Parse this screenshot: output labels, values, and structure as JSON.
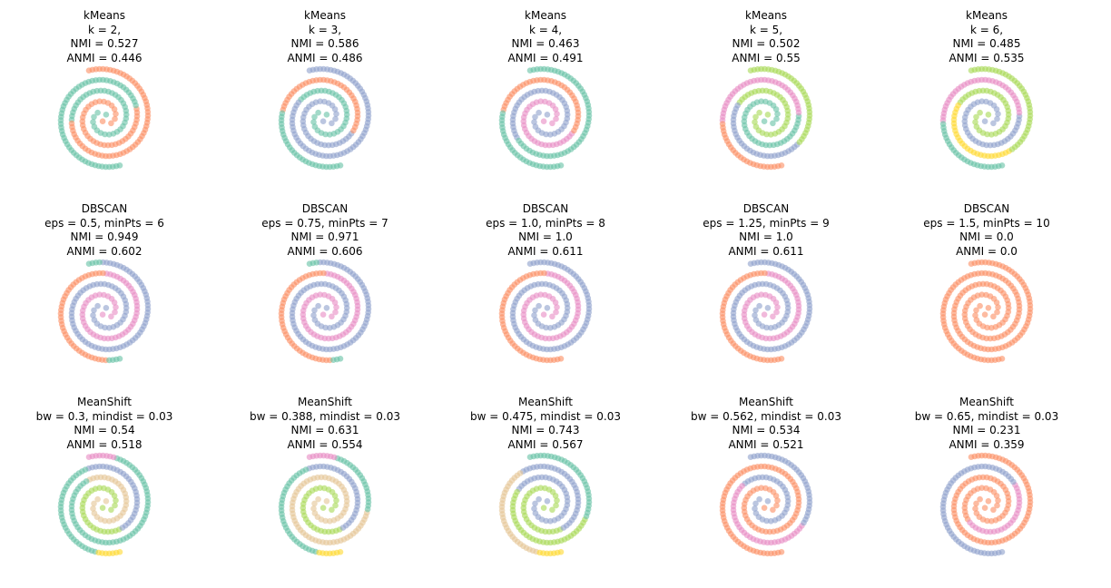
{
  "palette": {
    "green": "#66c2a5",
    "orange": "#fc8d62",
    "blue": "#8da0cb",
    "pink": "#e78ac3",
    "lime": "#a6d854",
    "yellow": "#ffd92f",
    "tan": "#e5c494"
  },
  "chart_data": [
    {
      "type": "scatter",
      "title": [
        "kMeans",
        "k = 2,",
        "NMI = 0.527",
        "ANMI = 0.446"
      ],
      "segments": [
        {
          "arm": 0,
          "from": 0,
          "to": 0.4,
          "color": "green"
        },
        {
          "arm": 0,
          "from": 0.4,
          "to": 1,
          "color": "orange"
        },
        {
          "arm": 1,
          "from": 0,
          "to": 0.42,
          "color": "orange"
        },
        {
          "arm": 1,
          "from": 0.42,
          "to": 1,
          "color": "green"
        }
      ]
    },
    {
      "type": "scatter",
      "title": [
        "kMeans",
        "k = 3,",
        "NMI = 0.586",
        "ANMI = 0.486"
      ],
      "segments": [
        {
          "arm": 0,
          "from": 0,
          "to": 0.33,
          "color": "green"
        },
        {
          "arm": 0,
          "from": 0.33,
          "to": 1,
          "color": "blue"
        },
        {
          "arm": 1,
          "from": 0,
          "to": 0.35,
          "color": "blue"
        },
        {
          "arm": 1,
          "from": 0.35,
          "to": 0.72,
          "color": "orange"
        },
        {
          "arm": 1,
          "from": 0.72,
          "to": 1,
          "color": "green"
        }
      ]
    },
    {
      "type": "scatter",
      "title": [
        "kMeans",
        "k = 4,",
        "NMI = 0.463",
        "ANMI = 0.491"
      ],
      "segments": [
        {
          "arm": 0,
          "from": 0,
          "to": 0.45,
          "color": "blue"
        },
        {
          "arm": 0,
          "from": 0.45,
          "to": 1,
          "color": "green"
        },
        {
          "arm": 1,
          "from": 0,
          "to": 0.35,
          "color": "pink"
        },
        {
          "arm": 1,
          "from": 0.35,
          "to": 0.72,
          "color": "orange"
        },
        {
          "arm": 1,
          "from": 0.72,
          "to": 1,
          "color": "green"
        }
      ]
    },
    {
      "type": "scatter",
      "title": [
        "kMeans",
        "k = 5,",
        "NMI = 0.502",
        "ANMI = 0.55"
      ],
      "segments": [
        {
          "arm": 0,
          "from": 0,
          "to": 0.35,
          "color": "lime"
        },
        {
          "arm": 0,
          "from": 0.35,
          "to": 0.65,
          "color": "blue"
        },
        {
          "arm": 0,
          "from": 0.65,
          "to": 1,
          "color": "lime"
        },
        {
          "arm": 1,
          "from": 0,
          "to": 0.4,
          "color": "green"
        },
        {
          "arm": 1,
          "from": 0.4,
          "to": 0.75,
          "color": "pink"
        },
        {
          "arm": 1,
          "from": 0.75,
          "to": 1,
          "color": "orange"
        }
      ]
    },
    {
      "type": "scatter",
      "title": [
        "kMeans",
        "k = 6,",
        "NMI = 0.485",
        "ANMI = 0.535"
      ],
      "segments": [
        {
          "arm": 0,
          "from": 0,
          "to": 0.35,
          "color": "lime"
        },
        {
          "arm": 0,
          "from": 0.35,
          "to": 0.62,
          "color": "yellow"
        },
        {
          "arm": 0,
          "from": 0.62,
          "to": 1,
          "color": "lime"
        },
        {
          "arm": 1,
          "from": 0,
          "to": 0.4,
          "color": "blue"
        },
        {
          "arm": 1,
          "from": 0.4,
          "to": 0.75,
          "color": "pink"
        },
        {
          "arm": 1,
          "from": 0.75,
          "to": 1,
          "color": "green"
        }
      ]
    },
    {
      "type": "scatter",
      "title": [
        "DBSCAN",
        "eps = 0.5, minPts = 6",
        "NMI = 0.949",
        "ANMI = 0.602"
      ],
      "segments": [
        {
          "arm": 0,
          "from": 0,
          "to": 0.96,
          "color": "blue"
        },
        {
          "arm": 0,
          "from": 0.96,
          "to": 1,
          "color": "green"
        },
        {
          "arm": 1,
          "from": 0,
          "to": 0.55,
          "color": "pink"
        },
        {
          "arm": 1,
          "from": 0.55,
          "to": 0.96,
          "color": "orange"
        },
        {
          "arm": 1,
          "from": 0.96,
          "to": 1,
          "color": "green"
        }
      ]
    },
    {
      "type": "scatter",
      "title": [
        "DBSCAN",
        "eps = 0.75, minPts = 7",
        "NMI = 0.971",
        "ANMI = 0.606"
      ],
      "segments": [
        {
          "arm": 0,
          "from": 0,
          "to": 0.97,
          "color": "blue"
        },
        {
          "arm": 0,
          "from": 0.97,
          "to": 1,
          "color": "green"
        },
        {
          "arm": 1,
          "from": 0,
          "to": 0.55,
          "color": "pink"
        },
        {
          "arm": 1,
          "from": 0.55,
          "to": 0.97,
          "color": "orange"
        },
        {
          "arm": 1,
          "from": 0.97,
          "to": 1,
          "color": "green"
        }
      ]
    },
    {
      "type": "scatter",
      "title": [
        "DBSCAN",
        "eps = 1.0, minPts = 8",
        "NMI = 1.0",
        "ANMI = 0.611"
      ],
      "segments": [
        {
          "arm": 0,
          "from": 0,
          "to": 1,
          "color": "blue"
        },
        {
          "arm": 1,
          "from": 0,
          "to": 0.55,
          "color": "pink"
        },
        {
          "arm": 1,
          "from": 0.55,
          "to": 1,
          "color": "orange"
        }
      ]
    },
    {
      "type": "scatter",
      "title": [
        "DBSCAN",
        "eps = 1.25, minPts = 9",
        "NMI = 1.0",
        "ANMI = 0.611"
      ],
      "segments": [
        {
          "arm": 0,
          "from": 0,
          "to": 1,
          "color": "blue"
        },
        {
          "arm": 1,
          "from": 0,
          "to": 0.55,
          "color": "pink"
        },
        {
          "arm": 1,
          "from": 0.55,
          "to": 1,
          "color": "orange"
        }
      ]
    },
    {
      "type": "scatter",
      "title": [
        "DBSCAN",
        "eps = 1.5, minPts = 10",
        "NMI = 0.0",
        "ANMI = 0.0"
      ],
      "segments": [
        {
          "arm": 0,
          "from": 0,
          "to": 1,
          "color": "orange"
        },
        {
          "arm": 1,
          "from": 0,
          "to": 1,
          "color": "orange"
        }
      ]
    },
    {
      "type": "scatter",
      "title": [
        "MeanShift",
        "bw = 0.3, mindist = 0.03",
        "NMI = 0.54",
        "ANMI = 0.518"
      ],
      "segments": [
        {
          "arm": 0,
          "from": 0,
          "to": 0.3,
          "color": "tan"
        },
        {
          "arm": 0,
          "from": 0.3,
          "to": 0.92,
          "color": "green"
        },
        {
          "arm": 0,
          "from": 0.92,
          "to": 1,
          "color": "pink"
        },
        {
          "arm": 1,
          "from": 0,
          "to": 0.3,
          "color": "lime"
        },
        {
          "arm": 1,
          "from": 0.3,
          "to": 0.6,
          "color": "blue"
        },
        {
          "arm": 1,
          "from": 0.6,
          "to": 0.93,
          "color": "green"
        },
        {
          "arm": 1,
          "from": 0.93,
          "to": 1,
          "color": "yellow"
        }
      ]
    },
    {
      "type": "scatter",
      "title": [
        "MeanShift",
        "bw = 0.388, mindist = 0.03",
        "NMI = 0.631",
        "ANMI = 0.554"
      ],
      "segments": [
        {
          "arm": 0,
          "from": 0,
          "to": 0.3,
          "color": "tan"
        },
        {
          "arm": 0,
          "from": 0.3,
          "to": 0.72,
          "color": "tan"
        },
        {
          "arm": 0,
          "from": 0.72,
          "to": 0.92,
          "color": "green"
        },
        {
          "arm": 0,
          "from": 0.92,
          "to": 1,
          "color": "pink"
        },
        {
          "arm": 1,
          "from": 0,
          "to": 0.3,
          "color": "lime"
        },
        {
          "arm": 1,
          "from": 0.3,
          "to": 0.6,
          "color": "blue"
        },
        {
          "arm": 1,
          "from": 0.6,
          "to": 0.93,
          "color": "green"
        },
        {
          "arm": 1,
          "from": 0.93,
          "to": 1,
          "color": "yellow"
        }
      ]
    },
    {
      "type": "scatter",
      "title": [
        "MeanShift",
        "bw = 0.475, mindist = 0.03",
        "NMI = 0.743",
        "ANMI = 0.567"
      ],
      "segments": [
        {
          "arm": 0,
          "from": 0,
          "to": 0.35,
          "color": "blue"
        },
        {
          "arm": 0,
          "from": 0.35,
          "to": 0.7,
          "color": "lime"
        },
        {
          "arm": 0,
          "from": 0.7,
          "to": 1,
          "color": "green"
        },
        {
          "arm": 1,
          "from": 0,
          "to": 0.3,
          "color": "lime"
        },
        {
          "arm": 1,
          "from": 0.3,
          "to": 0.62,
          "color": "blue"
        },
        {
          "arm": 1,
          "from": 0.62,
          "to": 0.93,
          "color": "tan"
        },
        {
          "arm": 1,
          "from": 0.93,
          "to": 1,
          "color": "yellow"
        }
      ]
    },
    {
      "type": "scatter",
      "title": [
        "MeanShift",
        "bw = 0.562, mindist = 0.03",
        "NMI = 0.534",
        "ANMI = 0.521"
      ],
      "segments": [
        {
          "arm": 0,
          "from": 0,
          "to": 0.32,
          "color": "blue"
        },
        {
          "arm": 0,
          "from": 0.32,
          "to": 0.68,
          "color": "pink"
        },
        {
          "arm": 0,
          "from": 0.68,
          "to": 1,
          "color": "blue"
        },
        {
          "arm": 1,
          "from": 0,
          "to": 0.6,
          "color": "orange"
        },
        {
          "arm": 1,
          "from": 0.6,
          "to": 1,
          "color": "orange"
        }
      ]
    },
    {
      "type": "scatter",
      "title": [
        "MeanShift",
        "bw = 0.65, mindist = 0.03",
        "NMI = 0.231",
        "ANMI = 0.359"
      ],
      "segments": [
        {
          "arm": 0,
          "from": 0,
          "to": 0.35,
          "color": "orange"
        },
        {
          "arm": 0,
          "from": 0.35,
          "to": 1,
          "color": "orange"
        },
        {
          "arm": 1,
          "from": 0,
          "to": 0.2,
          "color": "orange"
        },
        {
          "arm": 1,
          "from": 0.2,
          "to": 0.45,
          "color": "pink"
        },
        {
          "arm": 1,
          "from": 0.45,
          "to": 1,
          "color": "blue"
        }
      ]
    }
  ]
}
